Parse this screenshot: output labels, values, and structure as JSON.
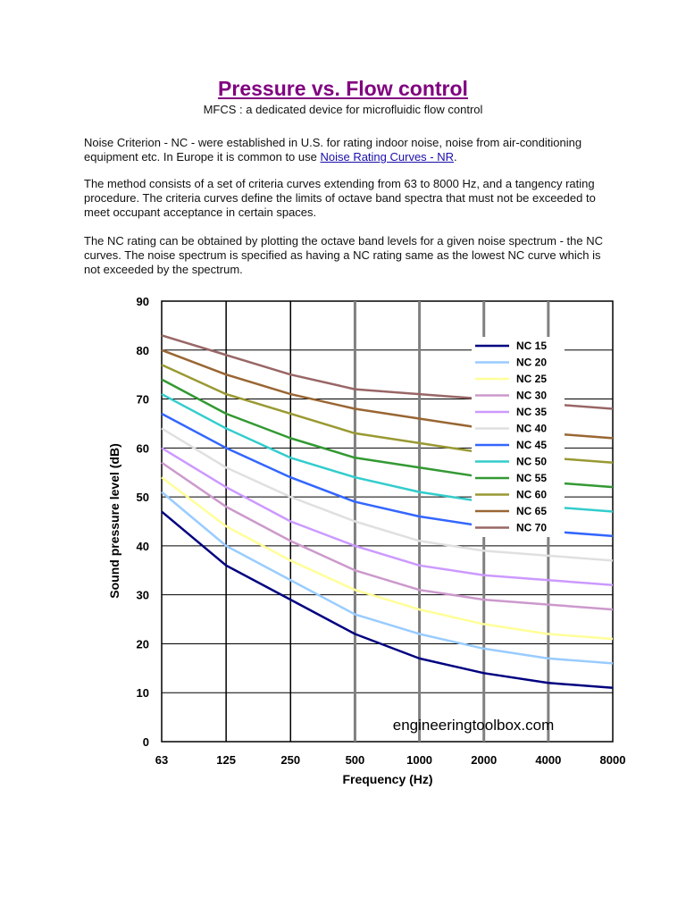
{
  "header": {
    "title": "Pressure vs. Flow control",
    "subtitle": "MFCS : a dedicated device for microfluidic flow control"
  },
  "body": {
    "p1_text": "Noise Criterion - NC - were established in U.S. for rating indoor noise, noise from air-conditioning equipment etc. In Europe it is common to use ",
    "p1_link": "Noise Rating Curves - NR",
    "p1_end": ".",
    "p2": "The method consists of a set of criteria curves extending from 63 to 8000 Hz, and a tangency rating procedure. The criteria curves define the limits of octave band spectra that must not be exceeded to meet occupant acceptance in certain spaces.",
    "p3": "The NC rating can be obtained by plotting the octave band levels for a given noise spectrum - the NC curves. The noise spectrum is specified as having a NC rating same as the lowest NC curve which is not exceeded by the spectrum."
  },
  "chart_data": {
    "type": "line",
    "xlabel": "Frequency (Hz)",
    "ylabel": "Sound pressure level (dB)",
    "categories": [
      "63",
      "125",
      "250",
      "500",
      "1000",
      "2000",
      "4000",
      "8000"
    ],
    "ylim": [
      0,
      90
    ],
    "yticks": [
      0,
      10,
      20,
      30,
      40,
      50,
      60,
      70,
      80,
      90
    ],
    "grid": true,
    "legend_position": "top-right",
    "credit": "engineeringtoolbox.com",
    "series": [
      {
        "name": "NC 15",
        "color": "#000080",
        "values": [
          47,
          36,
          29,
          22,
          17,
          14,
          12,
          11
        ]
      },
      {
        "name": "NC 20",
        "color": "#99ccff",
        "values": [
          51,
          40,
          33,
          26,
          22,
          19,
          17,
          16
        ]
      },
      {
        "name": "NC 25",
        "color": "#ffff99",
        "values": [
          54,
          44,
          37,
          31,
          27,
          24,
          22,
          21
        ]
      },
      {
        "name": "NC 30",
        "color": "#cc99cc",
        "values": [
          57,
          48,
          41,
          35,
          31,
          29,
          28,
          27
        ]
      },
      {
        "name": "NC 35",
        "color": "#cc99ff",
        "values": [
          60,
          52,
          45,
          40,
          36,
          34,
          33,
          32
        ]
      },
      {
        "name": "NC 40",
        "color": "#e0e0e0",
        "values": [
          64,
          56,
          50,
          45,
          41,
          39,
          38,
          37
        ]
      },
      {
        "name": "NC 45",
        "color": "#3366ff",
        "values": [
          67,
          60,
          54,
          49,
          46,
          44,
          43,
          42
        ]
      },
      {
        "name": "NC 50",
        "color": "#33cccc",
        "values": [
          71,
          64,
          58,
          54,
          51,
          49,
          48,
          47
        ]
      },
      {
        "name": "NC 55",
        "color": "#339933",
        "values": [
          74,
          67,
          62,
          58,
          56,
          54,
          53,
          52
        ]
      },
      {
        "name": "NC 60",
        "color": "#999933",
        "values": [
          77,
          71,
          67,
          63,
          61,
          59,
          58,
          57
        ]
      },
      {
        "name": "NC 65",
        "color": "#996633",
        "values": [
          80,
          75,
          71,
          68,
          66,
          64,
          63,
          62
        ]
      },
      {
        "name": "NC 70",
        "color": "#996666",
        "values": [
          83,
          79,
          75,
          72,
          71,
          70,
          69,
          68
        ]
      }
    ]
  }
}
